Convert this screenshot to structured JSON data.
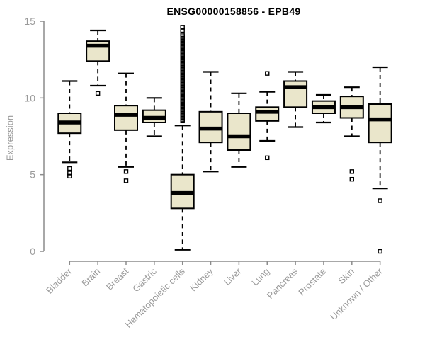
{
  "chart_data": {
    "type": "box",
    "title": "ENSG00000158856 - EPB49",
    "ylabel": "Expression",
    "xlabel": "",
    "ylim": [
      0,
      15
    ],
    "yticks": [
      0,
      5,
      10,
      15
    ],
    "legend": "none",
    "grid": false,
    "colors": {
      "box_fill": "#eae6cb",
      "box_line": "#000000",
      "axis_line": "#8c8c8c",
      "tick_label": "#9a9a9a"
    },
    "categories": [
      "Bladder",
      "Brain",
      "Breast",
      "Gastric",
      "Hematopoietic cells",
      "Kidney",
      "Liver",
      "Lung",
      "Pancreas",
      "Prostate",
      "Skin",
      "Unknown / Other"
    ],
    "boxes": [
      {
        "category": "Bladder",
        "whisker_low": 5.8,
        "q1": 7.7,
        "median": 8.4,
        "q3": 9.0,
        "whisker_high": 11.1,
        "outliers": [
          5.4,
          5.1,
          4.9
        ]
      },
      {
        "category": "Brain",
        "whisker_low": 10.8,
        "q1": 12.4,
        "median": 13.4,
        "q3": 13.7,
        "whisker_high": 14.4,
        "outliers": [
          10.3
        ]
      },
      {
        "category": "Breast",
        "whisker_low": 5.5,
        "q1": 7.9,
        "median": 8.9,
        "q3": 9.5,
        "whisker_high": 11.6,
        "outliers": [
          5.2,
          4.6
        ]
      },
      {
        "category": "Gastric",
        "whisker_low": 7.5,
        "q1": 8.4,
        "median": 8.7,
        "q3": 9.2,
        "whisker_high": 10.0,
        "outliers": []
      },
      {
        "category": "Hematopoietic cells",
        "whisker_low": 0.1,
        "q1": 2.8,
        "median": 3.8,
        "q3": 5.0,
        "whisker_high": 8.2,
        "outliers": [
          14.6,
          14.4,
          14.1,
          14.0,
          13.9,
          13.8,
          13.7,
          13.6,
          13.5,
          13.4,
          13.3,
          13.2,
          13.1,
          13.0,
          12.9,
          12.8,
          12.7,
          12.6,
          12.5,
          12.4,
          12.3,
          12.2,
          12.1,
          12.0,
          11.9,
          11.8,
          11.7,
          11.6,
          11.5,
          11.4,
          11.3,
          11.2,
          11.1,
          11.0,
          10.9,
          10.8,
          10.7,
          10.6,
          10.5,
          10.4,
          10.3,
          10.2,
          10.1,
          10.0,
          9.9,
          9.8,
          9.7,
          9.6,
          9.5,
          9.4,
          9.3,
          9.2,
          9.1,
          9.0,
          8.9,
          8.8,
          8.7,
          8.6,
          8.5
        ]
      },
      {
        "category": "Kidney",
        "whisker_low": 5.2,
        "q1": 7.1,
        "median": 8.0,
        "q3": 9.1,
        "whisker_high": 11.7,
        "outliers": []
      },
      {
        "category": "Liver",
        "whisker_low": 5.5,
        "q1": 6.6,
        "median": 7.5,
        "q3": 9.0,
        "whisker_high": 10.3,
        "outliers": []
      },
      {
        "category": "Lung",
        "whisker_low": 7.2,
        "q1": 8.5,
        "median": 9.1,
        "q3": 9.4,
        "whisker_high": 10.4,
        "outliers": [
          11.6,
          6.1
        ]
      },
      {
        "category": "Pancreas",
        "whisker_low": 8.1,
        "q1": 9.4,
        "median": 10.7,
        "q3": 11.1,
        "whisker_high": 11.7,
        "outliers": []
      },
      {
        "category": "Prostate",
        "whisker_low": 8.4,
        "q1": 9.0,
        "median": 9.4,
        "q3": 9.8,
        "whisker_high": 10.2,
        "outliers": []
      },
      {
        "category": "Skin",
        "whisker_low": 7.5,
        "q1": 8.7,
        "median": 9.4,
        "q3": 10.1,
        "whisker_high": 10.7,
        "outliers": [
          5.2,
          4.7
        ]
      },
      {
        "category": "Unknown / Other",
        "whisker_low": 4.1,
        "q1": 7.1,
        "median": 8.6,
        "q3": 9.6,
        "whisker_high": 12.0,
        "outliers": [
          3.3,
          0.0
        ]
      }
    ]
  }
}
